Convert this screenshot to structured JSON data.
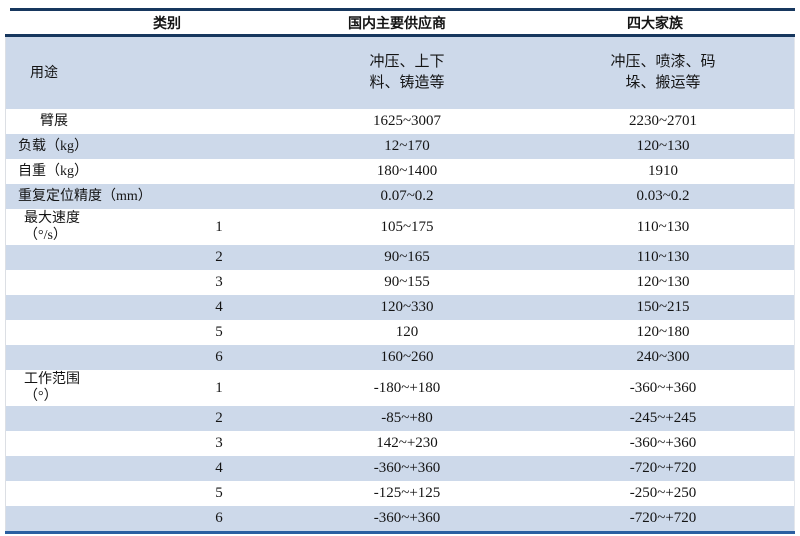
{
  "style": {
    "rule_color": "#17375e",
    "bottom_rule_color": "#2b5fa1",
    "row_highlight_color": "#cdd9ea",
    "row_base_color": "#ffffff",
    "text_color": "#141414"
  },
  "chart_data": {
    "type": "table",
    "title": "",
    "legend_position": "none",
    "grid": "horizontal-banding",
    "columns": [
      "类别",
      "国内主要供应商",
      "四大家族"
    ],
    "rows": [
      {
        "label": "用途",
        "sub": "",
        "domestic": "冲压、上下\n料、铸造等",
        "bigfour": "冲压、喷漆、码\n垛、搬运等",
        "rowStyle": "tall"
      },
      {
        "label": "臂展",
        "sub": "",
        "domestic": "1625~3007",
        "bigfour": "2230~2701"
      },
      {
        "label": "负载（kg）",
        "sub": "",
        "domestic": "12~170",
        "bigfour": "120~130"
      },
      {
        "label": "自重（kg）",
        "sub": "",
        "domestic": "180~1400",
        "bigfour": "1910"
      },
      {
        "label": "重复定位精度（mm）",
        "sub": "",
        "domestic": "0.07~0.2",
        "bigfour": "0.03~0.2"
      },
      {
        "label": "最大速度\n（°/s）",
        "sub": "1",
        "domestic": "105~175",
        "bigfour": "110~130",
        "rowStyle": "section"
      },
      {
        "label": "",
        "sub": "2",
        "domestic": "90~165",
        "bigfour": "110~130"
      },
      {
        "label": "",
        "sub": "3",
        "domestic": "90~155",
        "bigfour": "120~130"
      },
      {
        "label": "",
        "sub": "4",
        "domestic": "120~330",
        "bigfour": "150~215"
      },
      {
        "label": "",
        "sub": "5",
        "domestic": "120",
        "bigfour": "120~180"
      },
      {
        "label": "",
        "sub": "6",
        "domestic": "160~260",
        "bigfour": "240~300"
      },
      {
        "label": "工作范围\n（°）",
        "sub": "1",
        "domestic": "-180~+180",
        "bigfour": "-360~+360",
        "rowStyle": "section"
      },
      {
        "label": "",
        "sub": "2",
        "domestic": "-85~+80",
        "bigfour": "-245~+245"
      },
      {
        "label": "",
        "sub": "3",
        "domestic": "142~+230",
        "bigfour": "-360~+360"
      },
      {
        "label": "",
        "sub": "4",
        "domestic": "-360~+360",
        "bigfour": "-720~+720"
      },
      {
        "label": "",
        "sub": "5",
        "domestic": "-125~+125",
        "bigfour": "-250~+250"
      },
      {
        "label": "",
        "sub": "6",
        "domestic": "-360~+360",
        "bigfour": "-720~+720"
      }
    ]
  }
}
